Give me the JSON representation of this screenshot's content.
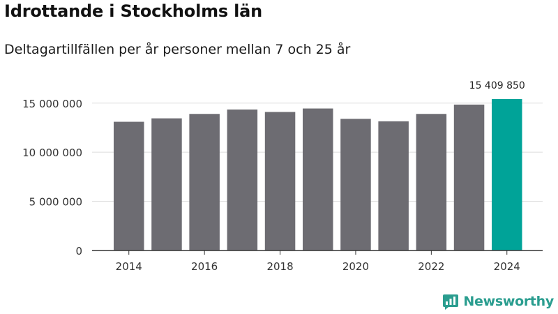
{
  "header": {
    "title": "Idrottande i Stockholms län",
    "subtitle": "Deltagartillfällen per år personer mellan 7 och 25 år"
  },
  "brand": {
    "name": "Newsworthy",
    "icon": "newsworthy-logo-icon",
    "color": "#2a9d8f"
  },
  "colors": {
    "bar": "#6d6c72",
    "highlight": "#00a398",
    "grid": "#dddddd",
    "axis": "#333333"
  },
  "chart_data": {
    "type": "bar",
    "title": "Idrottande i Stockholms län",
    "subtitle": "Deltagartillfällen per år personer mellan 7 och 25 år",
    "xlabel": "",
    "ylabel": "",
    "categories": [
      "2014",
      "2015",
      "2016",
      "2017",
      "2018",
      "2019",
      "2020",
      "2021",
      "2022",
      "2023",
      "2024"
    ],
    "values": [
      13100000,
      13450000,
      13900000,
      14350000,
      14100000,
      14450000,
      13400000,
      13150000,
      13900000,
      14850000,
      15409850
    ],
    "highlight_index": 10,
    "highlight_label": "15 409 850",
    "ylim": [
      0,
      15409850
    ],
    "yticks": [
      0,
      5000000,
      10000000,
      15000000
    ],
    "ytick_labels": [
      "0",
      "5 000 000",
      "10 000 000",
      "15 000 000"
    ],
    "xtick_labels": [
      "2014",
      "2016",
      "2018",
      "2020",
      "2022",
      "2024"
    ],
    "grid": true,
    "legend": "none"
  }
}
